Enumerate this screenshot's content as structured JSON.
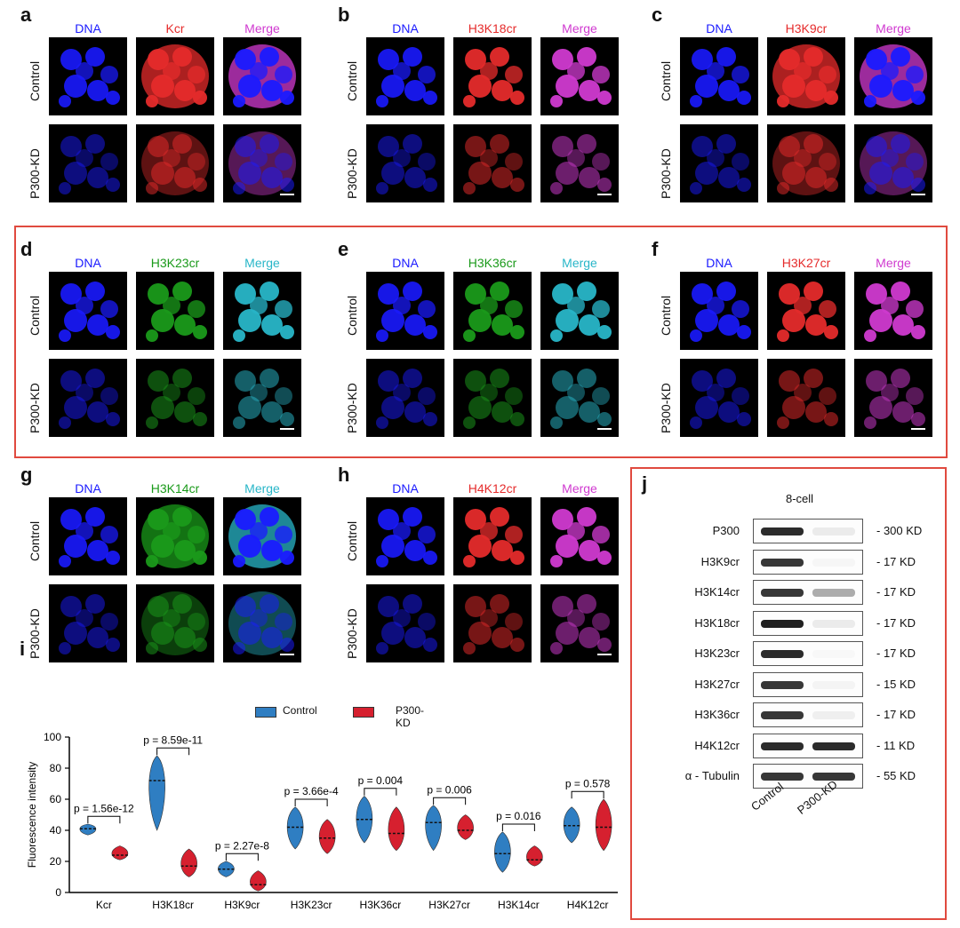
{
  "colors": {
    "dna": "#1a1aff",
    "red": "#e52b2b",
    "green": "#1a9a1a",
    "magenta": "#d03ad0",
    "cyan": "#28b6c8",
    "control": "#2f7ec2",
    "kd": "#d6202f",
    "box": "#e04a3f"
  },
  "panels": [
    {
      "letter": "a",
      "cols": [
        "DNA",
        "Kcr",
        "Merge"
      ],
      "rows": [
        "Control",
        "P300-KD"
      ]
    },
    {
      "letter": "b",
      "cols": [
        "DNA",
        "H3K18cr",
        "Merge"
      ],
      "rows": [
        "Control",
        "P300-KD"
      ]
    },
    {
      "letter": "c",
      "cols": [
        "DNA",
        "H3K9cr",
        "Merge"
      ],
      "rows": [
        "Control",
        "P300-KD"
      ]
    },
    {
      "letter": "d",
      "cols": [
        "DNA",
        "H3K23cr",
        "Merge"
      ],
      "rows": [
        "Control",
        "P300-KD"
      ]
    },
    {
      "letter": "e",
      "cols": [
        "DNA",
        "H3K36cr",
        "Merge"
      ],
      "rows": [
        "Control",
        "P300-KD"
      ]
    },
    {
      "letter": "f",
      "cols": [
        "DNA",
        "H3K27cr",
        "Merge"
      ],
      "rows": [
        "Control",
        "P300-KD"
      ]
    },
    {
      "letter": "g",
      "cols": [
        "DNA",
        "H3K14cr",
        "Merge"
      ],
      "rows": [
        "Control",
        "P300-KD"
      ]
    },
    {
      "letter": "h",
      "cols": [
        "DNA",
        "H4K12cr",
        "Merge"
      ],
      "rows": [
        "Control",
        "P300-KD"
      ]
    }
  ],
  "panel_i": {
    "letter": "i"
  },
  "panel_j": {
    "letter": "j",
    "title": "8-cell",
    "lanes": [
      "Control",
      "P300-KD"
    ],
    "blots": [
      {
        "protein": "P300",
        "size": "- 300 KD",
        "control": 0.9,
        "kd": 0.08
      },
      {
        "protein": "H3K9cr",
        "size": "- 17 KD",
        "control": 0.85,
        "kd": 0.03
      },
      {
        "protein": "H3K14cr",
        "size": "- 17 KD",
        "control": 0.85,
        "kd": 0.35
      },
      {
        "protein": "H3K18cr",
        "size": "- 17 KD",
        "control": 0.95,
        "kd": 0.08
      },
      {
        "protein": "H3K23cr",
        "size": "- 17 KD",
        "control": 0.9,
        "kd": 0.02
      },
      {
        "protein": "H3K27cr",
        "size": "- 15 KD",
        "control": 0.85,
        "kd": 0.04
      },
      {
        "protein": "H3K36cr",
        "size": "- 17 KD",
        "control": 0.85,
        "kd": 0.06
      },
      {
        "protein": "H4K12cr",
        "size": "- 11 KD",
        "control": 0.9,
        "kd": 0.9
      },
      {
        "protein": "α - Tubulin",
        "size": "- 55 KD",
        "control": 0.85,
        "kd": 0.85
      }
    ]
  },
  "chart_data": {
    "type": "violin",
    "ylabel": "Fluorescence intensity",
    "ylim": [
      0,
      100
    ],
    "yticks": [
      0,
      20,
      40,
      60,
      80,
      100
    ],
    "legend": [
      "Control",
      "P300-KD"
    ],
    "categories": [
      "Kcr",
      "H3K18cr",
      "H3K9cr",
      "H3K23cr",
      "H3K36cr",
      "H3K27cr",
      "H3K14cr",
      "H4K12cr"
    ],
    "series": [
      {
        "name": "Control",
        "medians": [
          41,
          72,
          15,
          42,
          47,
          45,
          25,
          43
        ],
        "ranges": [
          [
            37,
            44
          ],
          [
            40,
            88
          ],
          [
            10,
            20
          ],
          [
            28,
            55
          ],
          [
            32,
            62
          ],
          [
            27,
            56
          ],
          [
            13,
            39
          ],
          [
            32,
            55
          ]
        ]
      },
      {
        "name": "P300-KD",
        "medians": [
          24,
          17,
          5,
          35,
          38,
          40,
          21,
          42
        ],
        "ranges": [
          [
            21,
            30
          ],
          [
            10,
            28
          ],
          [
            1,
            14
          ],
          [
            25,
            47
          ],
          [
            27,
            55
          ],
          [
            34,
            50
          ],
          [
            17,
            30
          ],
          [
            27,
            60
          ]
        ]
      }
    ],
    "pvalues": [
      "p = 1.56e-12",
      "p = 8.59e-11",
      "p = 2.27e-8",
      "p = 3.66e-4",
      "p = 0.004",
      "p = 0.006",
      "p = 0.016",
      "p = 0.578"
    ]
  }
}
